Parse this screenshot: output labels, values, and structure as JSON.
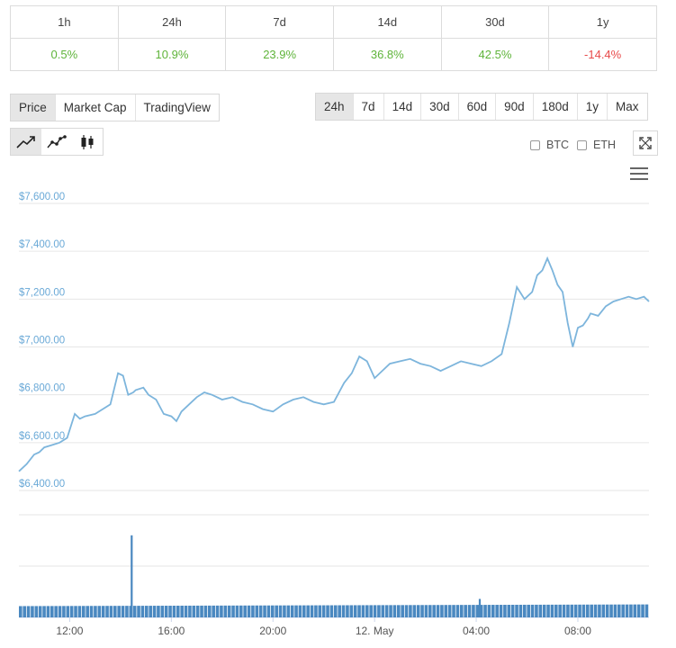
{
  "performance": {
    "periods": [
      "1h",
      "24h",
      "7d",
      "14d",
      "30d",
      "1y"
    ],
    "changes": [
      "0.5%",
      "10.9%",
      "23.9%",
      "36.8%",
      "42.5%",
      "-14.4%"
    ]
  },
  "metric_tabs": [
    "Price",
    "Market Cap",
    "TradingView"
  ],
  "metric_active": "Price",
  "range_tabs": [
    "24h",
    "7d",
    "14d",
    "30d",
    "60d",
    "90d",
    "180d",
    "1y",
    "Max"
  ],
  "range_active": "24h",
  "chart_tools": [
    "line-chart-icon",
    "smooth-line-icon",
    "candlestick-icon"
  ],
  "compare": {
    "btc": "BTC",
    "eth": "ETH"
  },
  "colors": {
    "line": "#7db5dc",
    "volume": "#4a88c0",
    "grid": "#e6e6e6",
    "ytick": "#6aa9d7",
    "positive": "#5fb43a",
    "negative": "#e84a4a"
  },
  "chart_data": {
    "type": "line",
    "x_ticks": [
      "12:00",
      "16:00",
      "20:00",
      "12. May",
      "04:00",
      "08:00"
    ],
    "y_ticks": [
      "$7,600.00",
      "$7,400.00",
      "$7,200.00",
      "$7,000.00",
      "$6,800.00",
      "$6,600.00",
      "$6,400.00"
    ],
    "ylim": [
      6400,
      7600
    ],
    "xlim": [
      0,
      24.8
    ],
    "series": [
      {
        "x": [
          0,
          0.3,
          0.6,
          0.8,
          1.0,
          1.3,
          1.6,
          1.9,
          2.2,
          2.4,
          2.6,
          3.0,
          3.3,
          3.6,
          3.9,
          4.1,
          4.3,
          4.5,
          4.6,
          4.9,
          5.1,
          5.4,
          5.7,
          6.0,
          6.2,
          6.4,
          6.7,
          7.0,
          7.3,
          7.6,
          8.0,
          8.4,
          8.8,
          9.2,
          9.6,
          10.0,
          10.4,
          10.8,
          11.2,
          11.6,
          12.0,
          12.4,
          12.8,
          13.1,
          13.4,
          13.7,
          14.0,
          14.3,
          14.6,
          15.0,
          15.4,
          15.8,
          16.2,
          16.6,
          17.0,
          17.4,
          17.8,
          18.2,
          18.6,
          19.0,
          19.3,
          19.6,
          19.9,
          20.2,
          20.4,
          20.6,
          20.8,
          21.0,
          21.2,
          21.4,
          21.6,
          21.8,
          22.0,
          22.2,
          22.4,
          22.5,
          22.8,
          23.1,
          23.4,
          23.7,
          24.0,
          24.3,
          24.6,
          24.8
        ],
        "y": [
          6480,
          6510,
          6550,
          6560,
          6580,
          6590,
          6600,
          6620,
          6720,
          6700,
          6710,
          6720,
          6740,
          6760,
          6890,
          6880,
          6800,
          6810,
          6820,
          6830,
          6800,
          6780,
          6720,
          6710,
          6690,
          6730,
          6760,
          6790,
          6810,
          6800,
          6780,
          6790,
          6770,
          6760,
          6740,
          6730,
          6760,
          6780,
          6790,
          6770,
          6760,
          6770,
          6850,
          6890,
          6960,
          6940,
          6870,
          6900,
          6930,
          6940,
          6950,
          6930,
          6920,
          6900,
          6920,
          6940,
          6930,
          6920,
          6940,
          6970,
          7100,
          7250,
          7200,
          7230,
          7300,
          7320,
          7370,
          7320,
          7260,
          7230,
          7100,
          7000,
          7080,
          7090,
          7120,
          7140,
          7130,
          7170,
          7190,
          7200,
          7210,
          7200,
          7210,
          7190
        ]
      }
    ],
    "volume": {
      "x": [
        0,
        4.4,
        4.41,
        4.5,
        18.1,
        18.11,
        18.2,
        24.8
      ],
      "spike_at": [
        4.4,
        18.1
      ],
      "spike_heights": [
        0.8,
        0.18
      ],
      "base_level": [
        0.2,
        0.23
      ]
    }
  }
}
